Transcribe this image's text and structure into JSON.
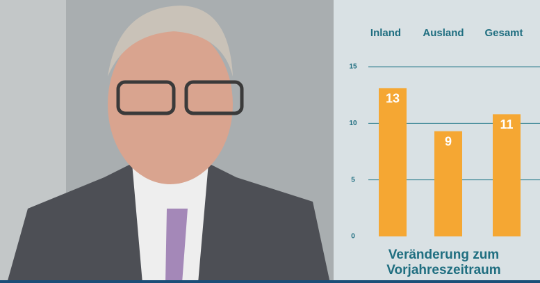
{
  "chart_data": {
    "type": "bar",
    "title": "Veränderung zum Vorjahreszeitraum",
    "categories": [
      "Inland",
      "Ausland",
      "Gesamt"
    ],
    "values": [
      13.1,
      9.3,
      10.8
    ],
    "value_labels": [
      "13",
      "9",
      "11"
    ],
    "color": "#f5a733",
    "ylim": [
      0,
      15
    ],
    "yticks": [
      0,
      5,
      10,
      15
    ],
    "grid": true
  }
}
